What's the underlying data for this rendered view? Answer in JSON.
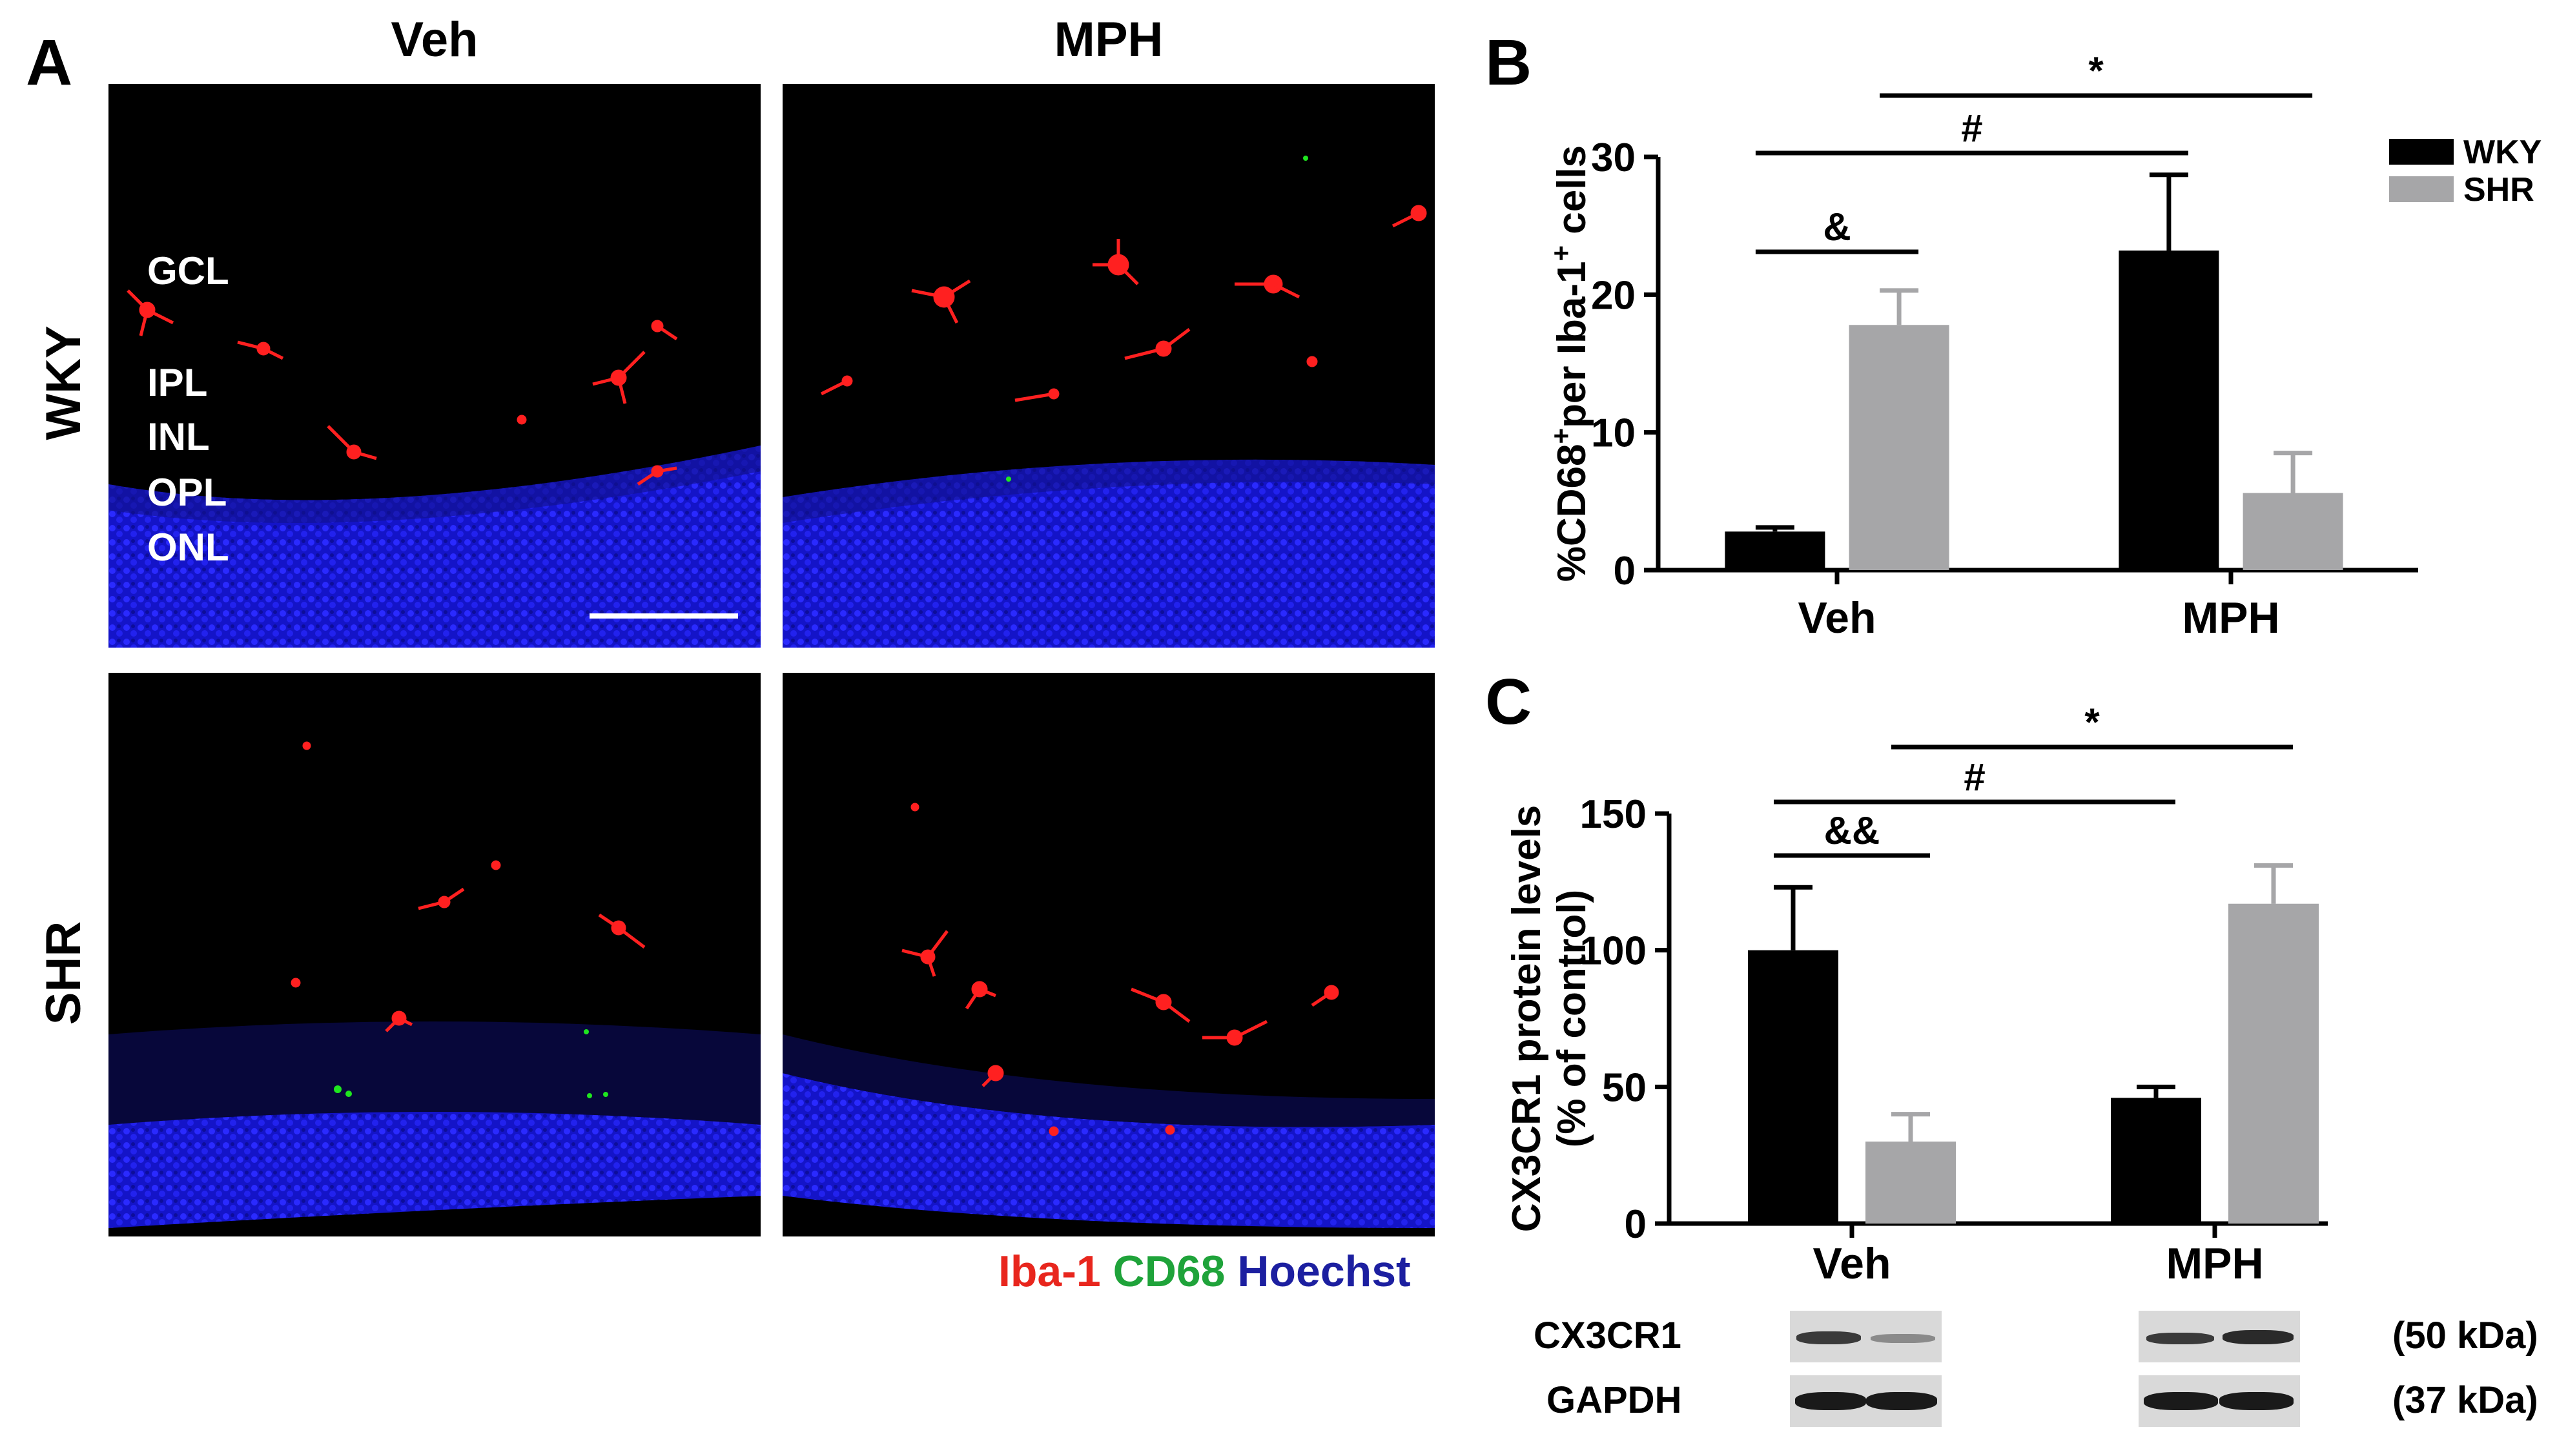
{
  "figure": {
    "panel_labels": {
      "a": "A",
      "b": "B",
      "c": "C"
    },
    "panel_a": {
      "columns": [
        "Veh",
        "MPH"
      ],
      "rows": [
        "WKY",
        "SHR"
      ],
      "layers": [
        "GCL",
        "IPL",
        "INL",
        "OPL",
        "ONL"
      ],
      "stains": [
        {
          "label": "Iba-1",
          "color": "#e8261d"
        },
        {
          "label": "CD68",
          "color": "#1fa33a"
        },
        {
          "label": "Hoechst",
          "color": "#1c1fa0"
        }
      ],
      "colors": {
        "nuclei": "#1a1ae6",
        "microglia": "#ff1a1a",
        "cd68": "#1fe61f",
        "background": "#000000"
      }
    },
    "western_blot": {
      "proteins": [
        "CX3CR1",
        "GAPDH"
      ],
      "sizes": [
        "(50 kDa)",
        "(37 kDa)"
      ]
    }
  },
  "chart_data": [
    {
      "type": "bar",
      "panel": "B",
      "ylabel": "%CD68+per Iba-1+ cells",
      "ylabel_parts": {
        "a": "%CD68",
        "a_sup": "+",
        "b": "per Iba-1",
        "b_sup": "+",
        "c": " cells"
      },
      "categories": [
        "Veh",
        "MPH"
      ],
      "series": [
        {
          "name": "WKY",
          "values": [
            2.8,
            23.2
          ],
          "errors": [
            0.3,
            5.5
          ],
          "color": "#000000"
        },
        {
          "name": "SHR",
          "values": [
            17.8,
            5.6
          ],
          "errors": [
            2.5,
            2.9
          ],
          "color": "#a6a6a8"
        }
      ],
      "ylim": [
        0,
        30
      ],
      "yticks": [
        0,
        10,
        20,
        30
      ],
      "legend": "top-right",
      "significance": [
        {
          "symbol": "&",
          "from": "Veh-WKY",
          "to": "Veh-SHR"
        },
        {
          "symbol": "#",
          "from": "Veh-WKY",
          "to": "MPH-WKY"
        },
        {
          "symbol": "*",
          "from": "Veh-SHR",
          "to": "MPH-SHR"
        }
      ]
    },
    {
      "type": "bar",
      "panel": "C",
      "ylabel": [
        "CX3CR1 protein levels",
        "(% of control)"
      ],
      "categories": [
        "Veh",
        "MPH"
      ],
      "series": [
        {
          "name": "WKY",
          "values": [
            100,
            46
          ],
          "errors": [
            23,
            4
          ],
          "color": "#000000"
        },
        {
          "name": "SHR",
          "values": [
            30,
            117
          ],
          "errors": [
            10,
            14
          ],
          "color": "#a6a6a8"
        }
      ],
      "ylim": [
        0,
        150
      ],
      "yticks": [
        0,
        50,
        100,
        150
      ],
      "significance": [
        {
          "symbol": "&&",
          "from": "Veh-WKY",
          "to": "Veh-SHR"
        },
        {
          "symbol": "#",
          "from": "Veh-WKY",
          "to": "MPH-WKY"
        },
        {
          "symbol": "*",
          "from": "Veh-SHR",
          "to": "MPH-SHR"
        }
      ]
    }
  ]
}
